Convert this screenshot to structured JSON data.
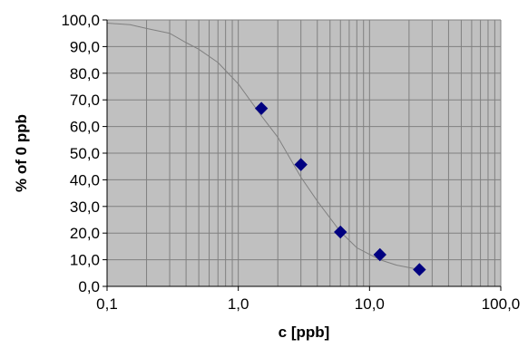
{
  "chart_data": {
    "type": "scatter",
    "title": "",
    "xlabel": "c [ppb]",
    "ylabel": "% of 0 ppb",
    "x_scale": "log",
    "xlim": [
      0.1,
      100
    ],
    "ylim": [
      0,
      100
    ],
    "grid": true,
    "legend": "none",
    "x_ticks": [
      0.1,
      1,
      10,
      100
    ],
    "x_tick_labels": [
      "0,1",
      "1,0",
      "10,0",
      "100,0"
    ],
    "y_ticks": [
      0,
      10,
      20,
      30,
      40,
      50,
      60,
      70,
      80,
      90,
      100
    ],
    "y_tick_labels": [
      "0,0",
      "10,0",
      "20,0",
      "30,0",
      "40,0",
      "50,0",
      "60,0",
      "70,0",
      "80,0",
      "90,0",
      "100,0"
    ],
    "series": [
      {
        "type": "scatter",
        "marker": "diamond",
        "color": "#000080",
        "x": [
          1.5,
          3.0,
          6.0,
          12.0,
          24.0
        ],
        "y": [
          66.8,
          45.7,
          20.4,
          11.9,
          6.3
        ]
      },
      {
        "type": "line",
        "color": "#808080",
        "x": [
          0.1,
          0.15,
          0.2,
          0.3,
          0.4,
          0.5,
          0.7,
          1.0,
          1.5,
          2.0,
          3.0,
          4.0,
          6.0,
          8.0,
          12.0,
          16.0,
          24.0
        ],
        "y": [
          98.8,
          98.2,
          96.8,
          95.0,
          91.5,
          89.0,
          84.0,
          76.0,
          64.0,
          56.0,
          41.0,
          32.0,
          20.5,
          14.5,
          10.0,
          8.0,
          6.3
        ]
      }
    ],
    "colors": {
      "plot_background": "#c0c0c0",
      "gridline": "#808080",
      "axis": "#000000",
      "marker": "#000080",
      "fit_line": "#808080"
    }
  }
}
